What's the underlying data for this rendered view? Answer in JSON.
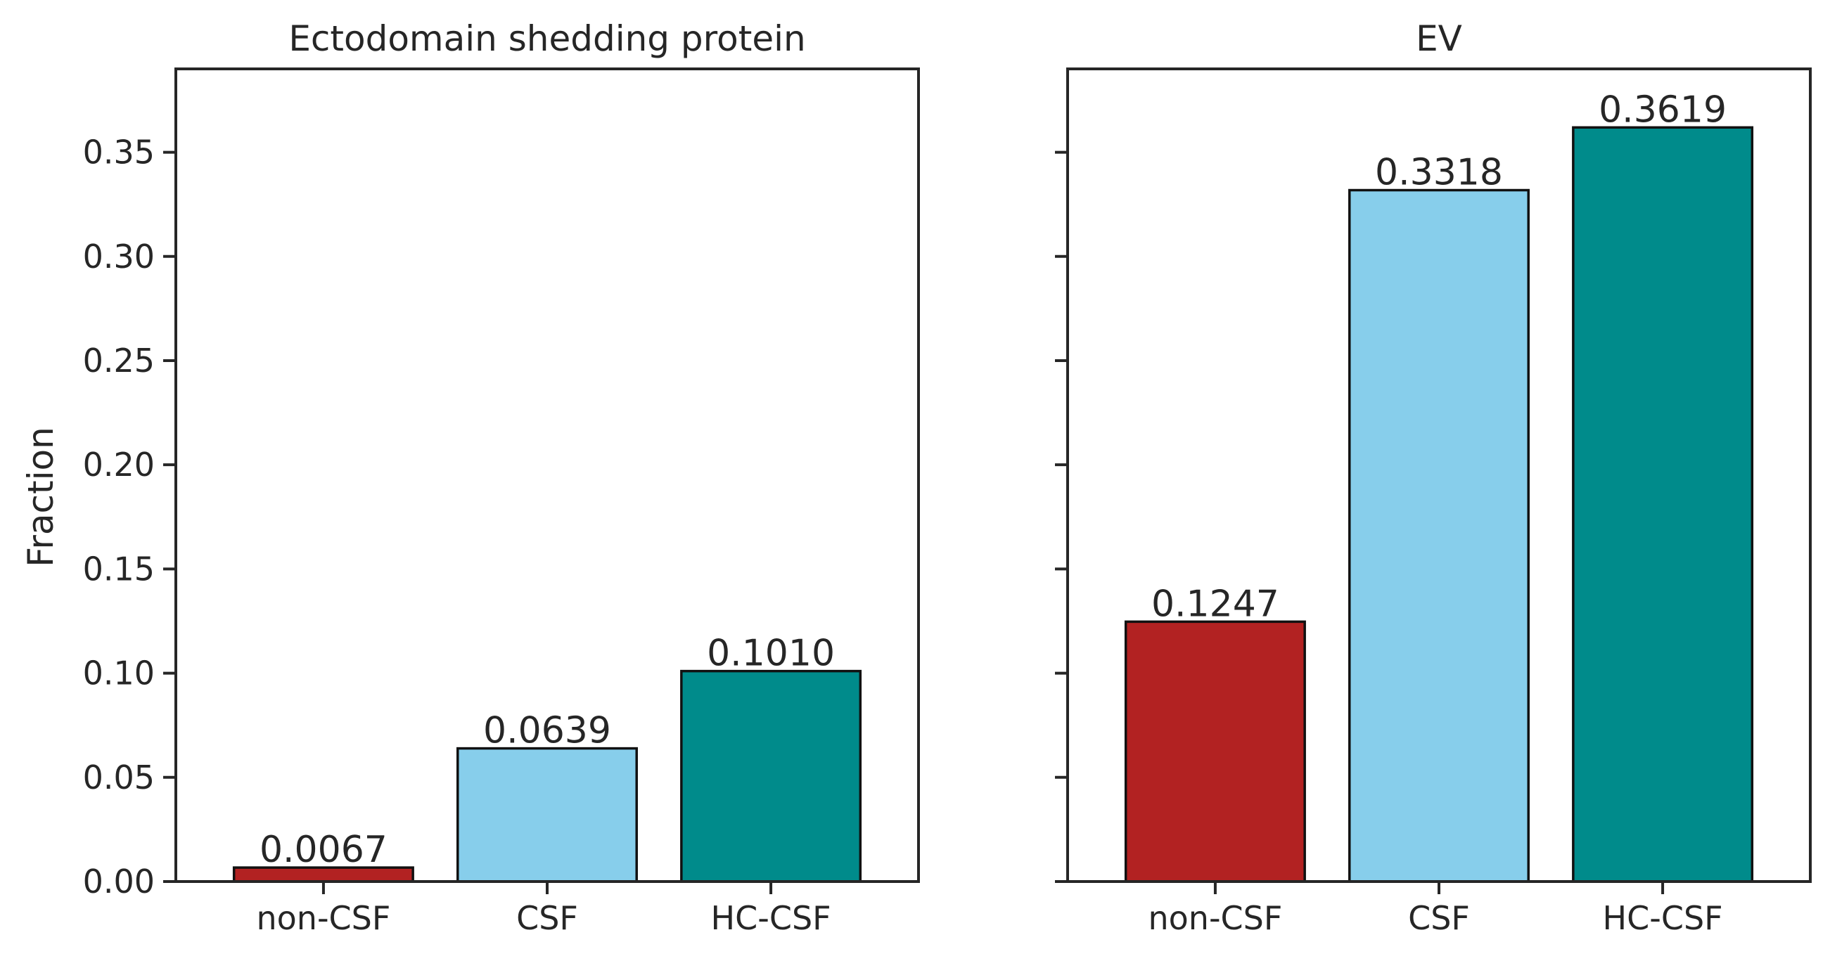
{
  "colors": {
    "non_csf": "#B22222",
    "csf": "#87CEEB",
    "hc_csf": "#008B8B",
    "axis": "#262626"
  },
  "chart_data": [
    {
      "type": "bar",
      "title": "Ectodomain shedding protein",
      "ylabel": "Fraction",
      "ylim": [
        0,
        0.39
      ],
      "yticks": [
        0.0,
        0.05,
        0.1,
        0.15,
        0.2,
        0.25,
        0.3,
        0.35
      ],
      "ytick_labels": [
        "0.00",
        "0.05",
        "0.10",
        "0.15",
        "0.20",
        "0.25",
        "0.30",
        "0.35"
      ],
      "categories": [
        "non-CSF",
        "CSF",
        "HC-CSF"
      ],
      "values": [
        0.0067,
        0.0639,
        0.101
      ],
      "data_labels": [
        "0.0067",
        "0.0639",
        "0.1010"
      ],
      "grid": false
    },
    {
      "type": "bar",
      "title": "EV",
      "ylabel": "",
      "ylim": [
        0,
        0.39
      ],
      "yticks": [
        0.0,
        0.05,
        0.1,
        0.15,
        0.2,
        0.25,
        0.3,
        0.35
      ],
      "ytick_labels": [],
      "categories": [
        "non-CSF",
        "CSF",
        "HC-CSF"
      ],
      "values": [
        0.1247,
        0.3318,
        0.3619
      ],
      "data_labels": [
        "0.1247",
        "0.3318",
        "0.3619"
      ],
      "grid": false
    }
  ]
}
